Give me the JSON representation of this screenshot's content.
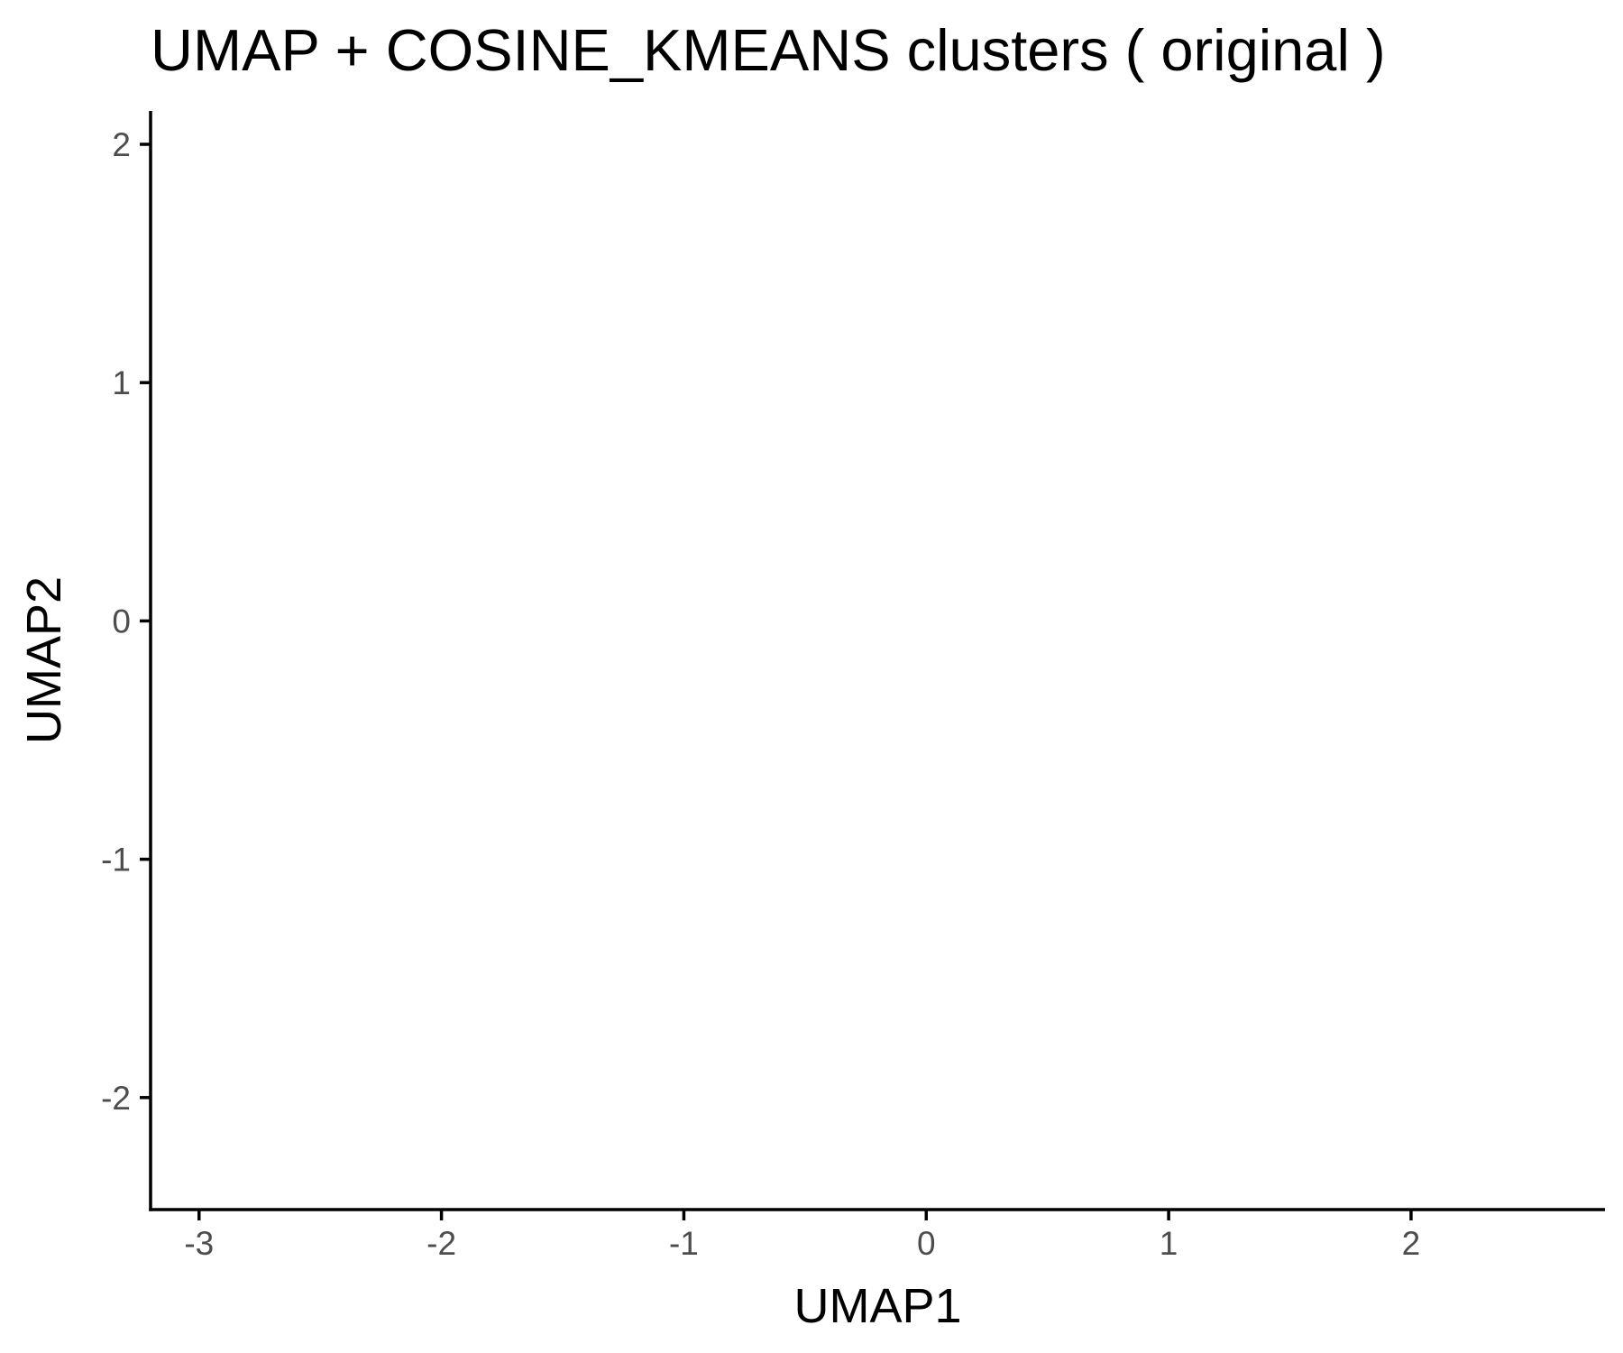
{
  "chart_data": {
    "type": "scatter",
    "title": "UMAP + COSINE_KMEANS clusters ( original )",
    "xlabel": "UMAP1",
    "ylabel": "UMAP2",
    "xlim": [
      -3.2,
      2.8
    ],
    "ylim": [
      -2.47,
      2.14
    ],
    "xticks": [
      {
        "value": -3,
        "label": "-3"
      },
      {
        "value": -2,
        "label": "-2"
      },
      {
        "value": -1,
        "label": "-1"
      },
      {
        "value": 0,
        "label": "0"
      },
      {
        "value": 1,
        "label": "1"
      },
      {
        "value": 2,
        "label": "2"
      }
    ],
    "yticks": [
      {
        "value": 2,
        "label": "2"
      },
      {
        "value": 1,
        "label": "1"
      },
      {
        "value": 0,
        "label": "0"
      },
      {
        "value": -1,
        "label": "-1"
      },
      {
        "value": -2,
        "label": "-2"
      }
    ],
    "grid": false,
    "legend": "none",
    "series": [],
    "colors": {
      "axis": "#000000",
      "tick_label": "#4d4d4d",
      "text": "#000000",
      "background": "#ffffff"
    }
  }
}
